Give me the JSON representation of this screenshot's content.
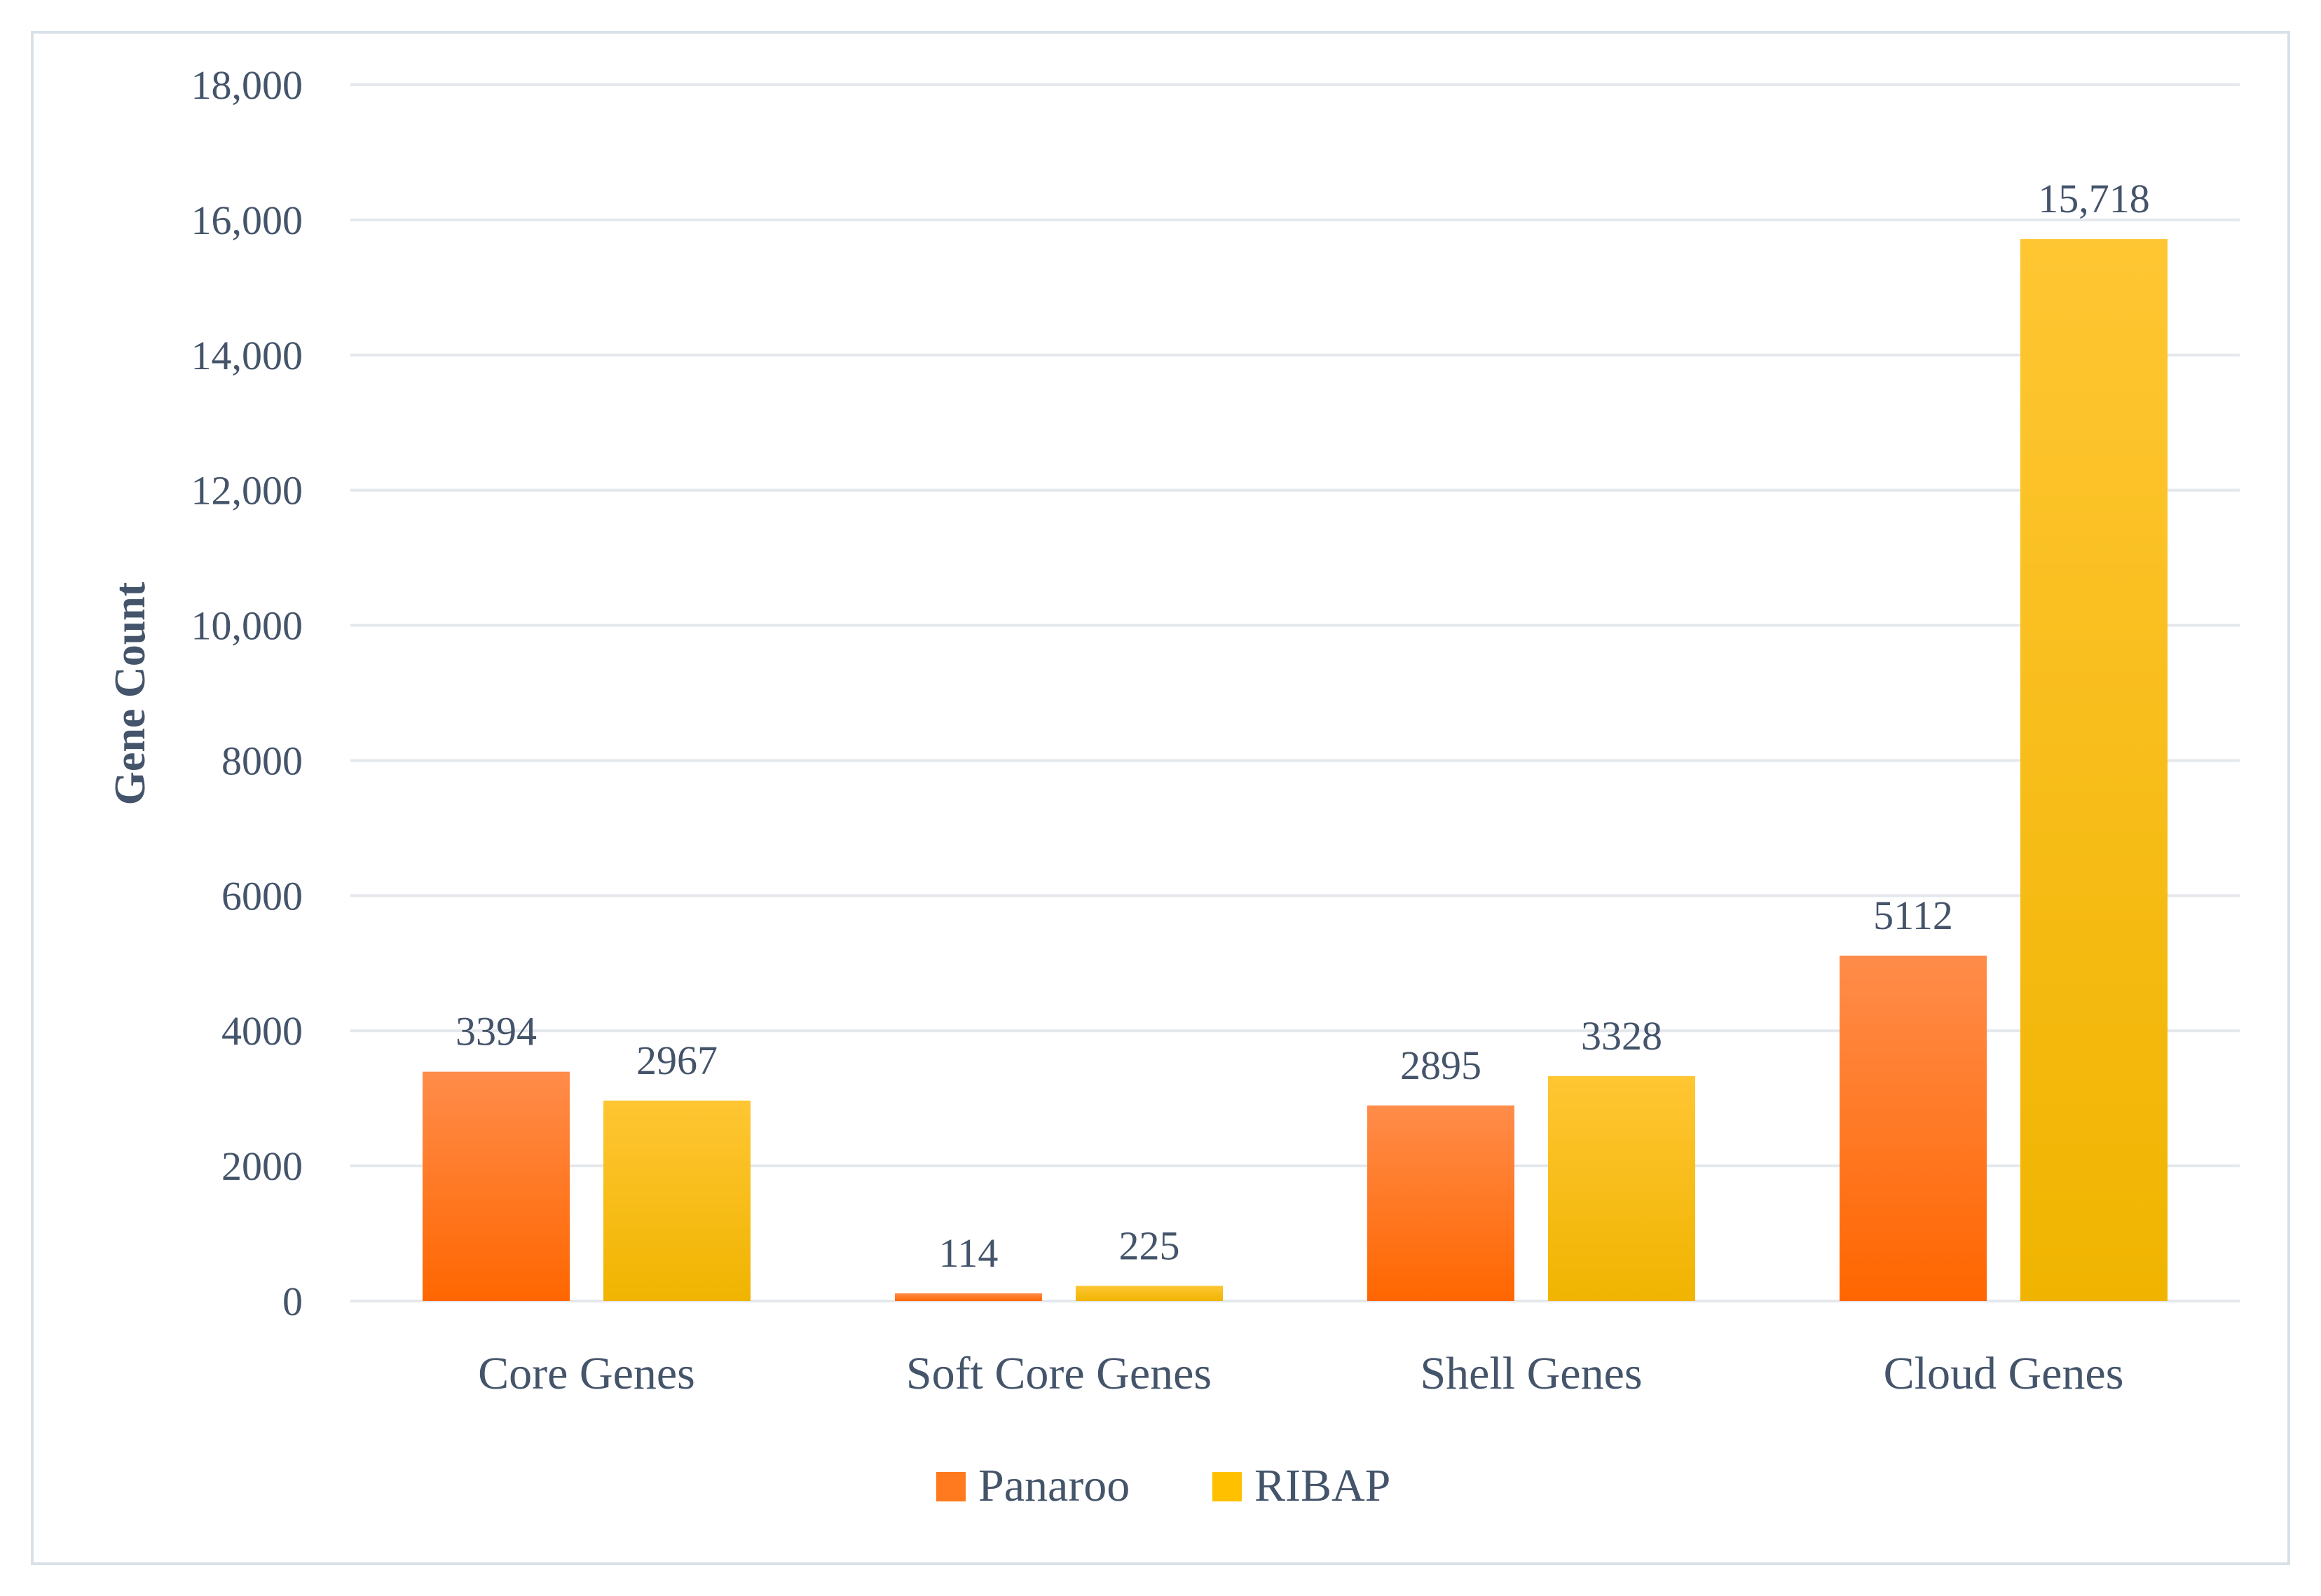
{
  "chart_data": {
    "type": "bar",
    "categories": [
      "Core Genes",
      "Soft Core Genes",
      "Shell Genes",
      "Cloud Genes"
    ],
    "series": [
      {
        "name": "Panaroo",
        "values": [
          3394,
          114,
          2895,
          5112
        ],
        "labels": [
          "3394",
          "114",
          "2895",
          "5112"
        ],
        "color": "#ff7a1e"
      },
      {
        "name": "RIBAP",
        "values": [
          2967,
          225,
          3328,
          15718
        ],
        "labels": [
          "2967",
          "225",
          "3328",
          "15,718"
        ],
        "color": "#ffc000"
      }
    ],
    "ylabel": "Gene Count",
    "xlabel": "",
    "ylim": [
      0,
      18000
    ],
    "yticks": [
      0,
      2000,
      4000,
      6000,
      8000,
      10000,
      12000,
      14000,
      16000,
      18000
    ],
    "ytick_labels": [
      "0",
      "2000",
      "4000",
      "6000",
      "8000",
      "10,000",
      "12,000",
      "14,000",
      "16,000",
      "18,000"
    ],
    "grid": true,
    "legend_position": "bottom"
  }
}
